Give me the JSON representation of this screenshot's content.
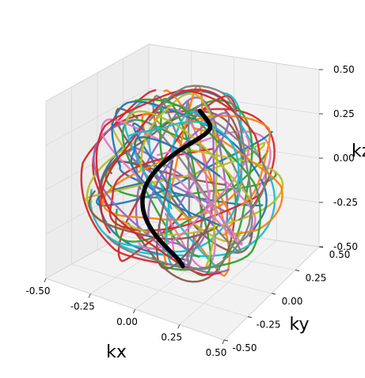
{
  "chart_data": {
    "type": "line",
    "projection": "3d",
    "title": "",
    "xlabel": "kx",
    "ylabel": "ky",
    "zlabel": "kz",
    "xlim": [
      -0.5,
      0.5
    ],
    "ylim": [
      -0.5,
      0.5
    ],
    "zlim": [
      -0.5,
      0.5
    ],
    "x_ticks": [
      "-0.50",
      "-0.25",
      "0.00",
      "0.25",
      "0.50"
    ],
    "y_ticks": [
      "-0.50",
      "-0.25",
      "0.00",
      "0.25",
      "0.50"
    ],
    "z_ticks": [
      "-0.50",
      "-0.25",
      "0.00",
      "0.25",
      "0.50"
    ],
    "grid": true,
    "description_of_series": "many colored 3D spiral/yarn trajectories filling a sphere of radius 0.5, one highlighted black trajectory",
    "trajectory_count": 60,
    "highlighted_color": "#000000",
    "palette": [
      "#1f77b4",
      "#ff7f0e",
      "#2ca02c",
      "#d62728",
      "#9467bd",
      "#8c564b",
      "#e377c2",
      "#7f7f7f",
      "#bcbd22",
      "#17becf"
    ]
  }
}
